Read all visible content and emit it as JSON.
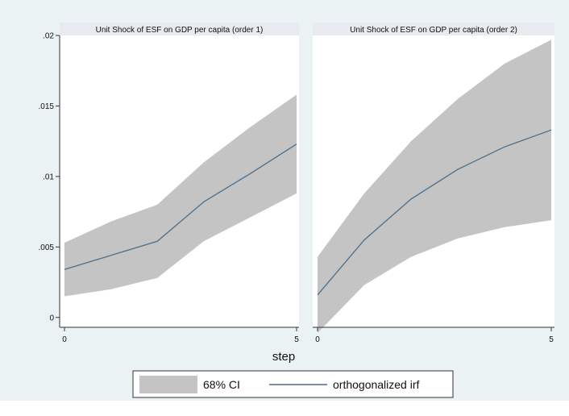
{
  "chart_data": [
    {
      "type": "area",
      "title": "Unit Shock of ESF on GDP per capita (order 1)",
      "xlabel": "step",
      "ylabel": "",
      "xlim": [
        0,
        5
      ],
      "ylim": [
        -0.0007,
        0.02
      ],
      "x_ticks": [
        0,
        5
      ],
      "x_tick_labels": [
        "0",
        "5"
      ],
      "y_ticks": [
        0,
        0.005,
        0.01,
        0.015,
        0.02
      ],
      "y_tick_labels": [
        "0",
        ".005",
        ".01",
        ".015",
        ".02"
      ],
      "x": [
        0,
        1,
        2,
        3,
        4,
        5
      ],
      "series": [
        {
          "name": "68% CI",
          "kind": "band",
          "lower": [
            0.0015,
            0.002,
            0.0028,
            0.0054,
            0.0071,
            0.0088
          ],
          "upper": [
            0.0053,
            0.0068,
            0.008,
            0.011,
            0.0135,
            0.0158
          ]
        },
        {
          "name": "orthogonalized irf",
          "kind": "line",
          "values": [
            0.0034,
            0.0044,
            0.0054,
            0.0082,
            0.0102,
            0.0123
          ]
        }
      ]
    },
    {
      "type": "area",
      "title": "Unit Shock of ESF on GDP per capita (order 2)",
      "xlabel": "step",
      "ylabel": "",
      "xlim": [
        0,
        5
      ],
      "ylim": [
        -0.0007,
        0.02
      ],
      "x_ticks": [
        0,
        5
      ],
      "x_tick_labels": [
        "0",
        "5"
      ],
      "y_ticks": [
        0,
        0.005,
        0.01,
        0.015,
        0.02
      ],
      "y_tick_labels": [
        "0",
        ".005",
        ".01",
        ".015",
        ".02"
      ],
      "x": [
        0,
        1,
        2,
        3,
        4,
        5
      ],
      "series": [
        {
          "name": "68% CI",
          "kind": "band",
          "lower": [
            -0.0011,
            0.0023,
            0.0043,
            0.0056,
            0.0064,
            0.0069
          ],
          "upper": [
            0.0043,
            0.0088,
            0.0125,
            0.0155,
            0.018,
            0.0197
          ]
        },
        {
          "name": "orthogonalized irf",
          "kind": "line",
          "values": [
            0.0016,
            0.0055,
            0.0084,
            0.0105,
            0.0121,
            0.0133
          ]
        }
      ]
    }
  ],
  "legend": {
    "position": "bottom",
    "items": [
      {
        "label": "68% CI",
        "kind": "band"
      },
      {
        "label": "orthogonalized irf",
        "kind": "line"
      }
    ]
  },
  "colors": {
    "outer_background": "#eaf2f3",
    "plot_background": "#ffffff",
    "panel_header": "#e7eaee",
    "band": "#c4c4c4",
    "line": "#4a6f8c",
    "axis": "#333333",
    "text": "#111111"
  }
}
